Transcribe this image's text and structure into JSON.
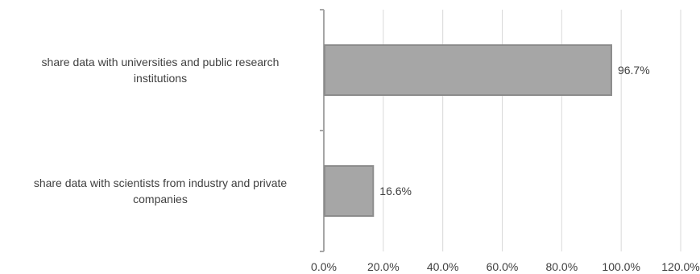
{
  "chart_data": {
    "type": "bar",
    "orientation": "horizontal",
    "categories": [
      "share data with universities and public research institutions",
      "share data with scientists from industry and private companies"
    ],
    "category_lines": [
      [
        "share data with universities and public research",
        "institutions"
      ],
      [
        "share data with scientists from industry and private",
        "companies"
      ]
    ],
    "values": [
      96.7,
      16.6
    ],
    "data_labels": [
      "96.7%",
      "16.6%"
    ],
    "xlim": [
      0,
      120
    ],
    "x_ticks": [
      0,
      20,
      40,
      60,
      80,
      100,
      120
    ],
    "x_tick_labels": [
      "0.0%",
      "20.0%",
      "40.0%",
      "60.0%",
      "80.0%",
      "100.0%",
      "120.0%"
    ],
    "grid": "vertical",
    "legend": "none",
    "title": "",
    "xlabel": "",
    "ylabel": "",
    "colors": {
      "bar_fill": "#a6a6a6",
      "bar_stroke": "#8c8c8c",
      "grid": "#d9d9d9",
      "axis": "#a6a6a6",
      "text": "#404040"
    }
  }
}
